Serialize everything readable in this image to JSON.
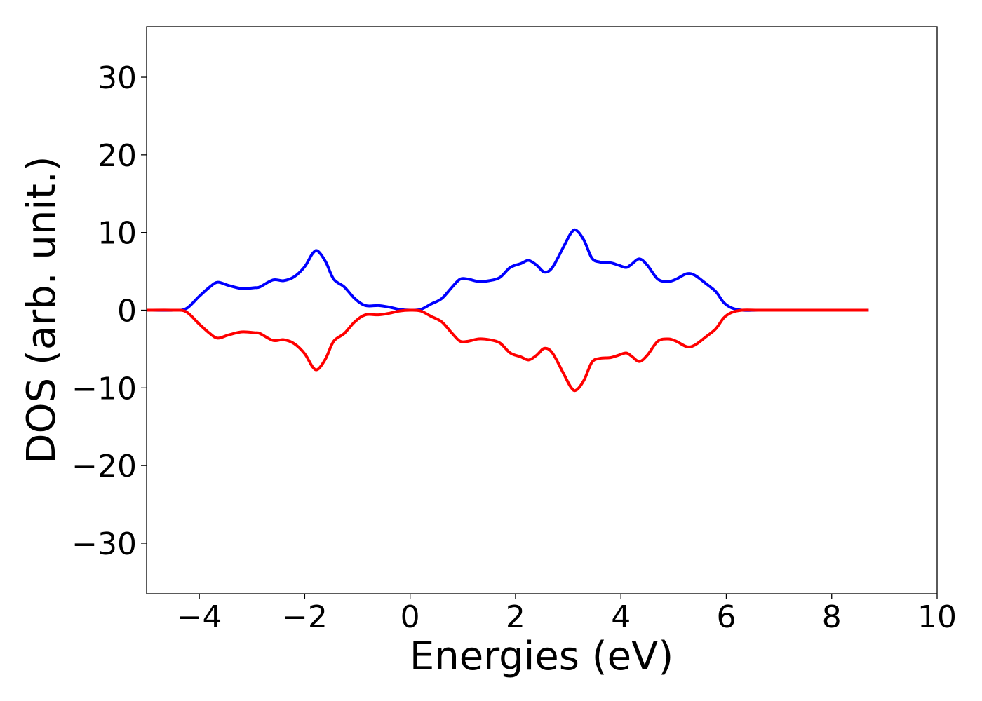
{
  "chart_data": {
    "type": "line",
    "title": "",
    "xlabel": "Energies (eV)",
    "ylabel": "DOS (arb. unit.)",
    "xlim": [
      -5,
      10
    ],
    "ylim": [
      -36.5,
      36.5
    ],
    "xticks": [
      -4,
      -2,
      0,
      2,
      4,
      6,
      8,
      10
    ],
    "yticks": [
      -30,
      -20,
      -10,
      0,
      10,
      20,
      30
    ],
    "xtick_labels": [
      "−4",
      "−2",
      "0",
      "2",
      "4",
      "6",
      "8",
      "10"
    ],
    "ytick_labels": [
      "−30",
      "−20",
      "−10",
      "0",
      "10",
      "20",
      "30"
    ],
    "grid": false,
    "legend": "none",
    "series": [
      {
        "color": "#0000ff",
        "x": [
          -5.0,
          -4.5,
          -4.25,
          -4.0,
          -3.8,
          -3.65,
          -3.45,
          -3.2,
          -2.95,
          -2.85,
          -2.6,
          -2.4,
          -2.2,
          -2.0,
          -1.85,
          -1.75,
          -1.6,
          -1.45,
          -1.25,
          -1.05,
          -0.85,
          -0.6,
          -0.4,
          -0.2,
          0.0,
          0.2,
          0.4,
          0.6,
          0.8,
          0.95,
          1.1,
          1.3,
          1.5,
          1.7,
          1.9,
          2.1,
          2.25,
          2.4,
          2.55,
          2.7,
          2.9,
          3.05,
          3.15,
          3.3,
          3.45,
          3.6,
          3.8,
          3.95,
          4.1,
          4.2,
          4.35,
          4.5,
          4.7,
          4.9,
          5.05,
          5.25,
          5.4,
          5.6,
          5.8,
          5.95,
          6.1,
          6.3,
          6.6,
          7.0,
          8.0,
          8.7
        ],
        "y": [
          0.0,
          0.0,
          0.2,
          1.8,
          3.0,
          3.6,
          3.2,
          2.8,
          2.9,
          3.0,
          3.9,
          3.8,
          4.3,
          5.6,
          7.3,
          7.6,
          6.2,
          4.0,
          3.0,
          1.5,
          0.6,
          0.6,
          0.4,
          0.1,
          0.0,
          0.1,
          0.8,
          1.5,
          3.0,
          4.0,
          4.0,
          3.7,
          3.8,
          4.2,
          5.5,
          6.0,
          6.4,
          5.8,
          4.9,
          5.5,
          8.0,
          9.9,
          10.3,
          9.0,
          6.7,
          6.2,
          6.1,
          5.8,
          5.5,
          5.9,
          6.6,
          5.8,
          4.0,
          3.7,
          4.0,
          4.7,
          4.5,
          3.5,
          2.4,
          1.0,
          0.3,
          0.0,
          0.0,
          0.0,
          0.0,
          0.0
        ]
      },
      {
        "color": "#ff0000",
        "x": [
          -5.0,
          -4.5,
          -4.25,
          -4.0,
          -3.8,
          -3.65,
          -3.45,
          -3.2,
          -2.95,
          -2.85,
          -2.6,
          -2.4,
          -2.2,
          -2.0,
          -1.85,
          -1.75,
          -1.6,
          -1.45,
          -1.25,
          -1.05,
          -0.85,
          -0.6,
          -0.4,
          -0.2,
          0.0,
          0.2,
          0.4,
          0.6,
          0.8,
          0.95,
          1.1,
          1.3,
          1.5,
          1.7,
          1.9,
          2.1,
          2.25,
          2.4,
          2.55,
          2.7,
          2.9,
          3.05,
          3.15,
          3.3,
          3.45,
          3.6,
          3.8,
          3.95,
          4.1,
          4.2,
          4.35,
          4.5,
          4.7,
          4.9,
          5.05,
          5.25,
          5.4,
          5.6,
          5.8,
          5.95,
          6.1,
          6.3,
          6.6,
          7.0,
          8.0,
          8.7
        ],
        "y": [
          0.0,
          0.0,
          -0.2,
          -1.8,
          -3.0,
          -3.6,
          -3.2,
          -2.8,
          -2.9,
          -3.0,
          -3.9,
          -3.8,
          -4.3,
          -5.6,
          -7.3,
          -7.6,
          -6.2,
          -4.0,
          -3.0,
          -1.5,
          -0.6,
          -0.6,
          -0.4,
          -0.1,
          0.0,
          -0.1,
          -0.8,
          -1.5,
          -3.0,
          -4.0,
          -4.0,
          -3.7,
          -3.8,
          -4.2,
          -5.5,
          -6.0,
          -6.4,
          -5.8,
          -4.9,
          -5.5,
          -8.0,
          -9.9,
          -10.3,
          -9.0,
          -6.7,
          -6.2,
          -6.1,
          -5.8,
          -5.5,
          -5.9,
          -6.6,
          -5.8,
          -4.0,
          -3.7,
          -4.0,
          -4.7,
          -4.5,
          -3.5,
          -2.4,
          -1.0,
          -0.3,
          0.0,
          0.0,
          0.0,
          0.0,
          0.0
        ]
      }
    ]
  }
}
